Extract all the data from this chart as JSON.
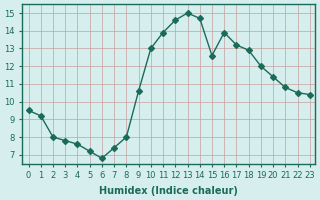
{
  "x": [
    0,
    1,
    2,
    3,
    4,
    5,
    6,
    7,
    8,
    9,
    10,
    11,
    12,
    13,
    14,
    15,
    16,
    17,
    18,
    19,
    20,
    21,
    22,
    23
  ],
  "y": [
    9.5,
    9.2,
    8.0,
    7.8,
    7.6,
    7.2,
    6.8,
    7.4,
    8.0,
    10.6,
    13.0,
    13.9,
    14.6,
    15.0,
    14.7,
    12.6,
    13.9,
    13.2,
    12.9,
    12.0,
    11.4,
    10.8,
    10.5,
    10.4
  ],
  "xlabel": "Humidex (Indice chaleur)",
  "line_color": "#1a6b5a",
  "marker": "D",
  "marker_size": 3,
  "bg_color": "#d6eeee",
  "xlim": [
    -0.5,
    23.4
  ],
  "ylim": [
    6.5,
    15.5
  ],
  "yticks": [
    7,
    8,
    9,
    10,
    11,
    12,
    13,
    14,
    15
  ],
  "xticks": [
    0,
    1,
    2,
    3,
    4,
    5,
    6,
    7,
    8,
    9,
    10,
    11,
    12,
    13,
    14,
    15,
    16,
    17,
    18,
    19,
    20,
    21,
    22,
    23
  ]
}
